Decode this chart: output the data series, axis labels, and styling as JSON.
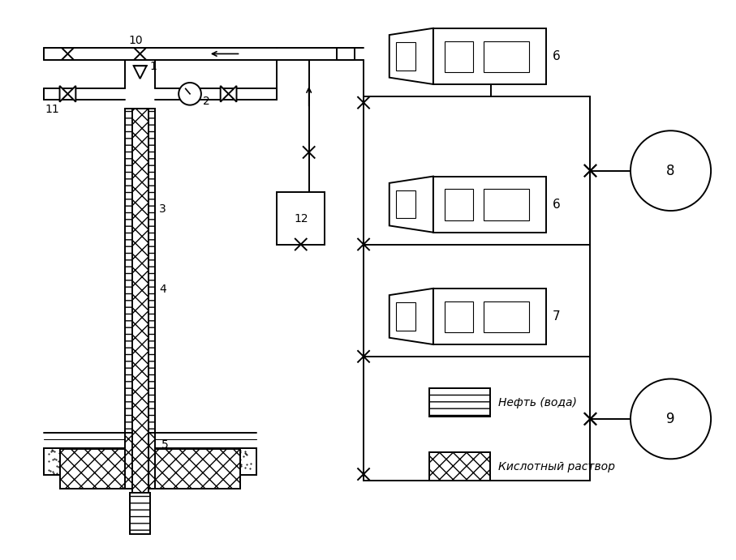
{
  "bg_color": "#ffffff",
  "line_color": "#000000",
  "legend_oil_text": "Нефть (вода)",
  "legend_acid_text": "Кислотный раствор"
}
